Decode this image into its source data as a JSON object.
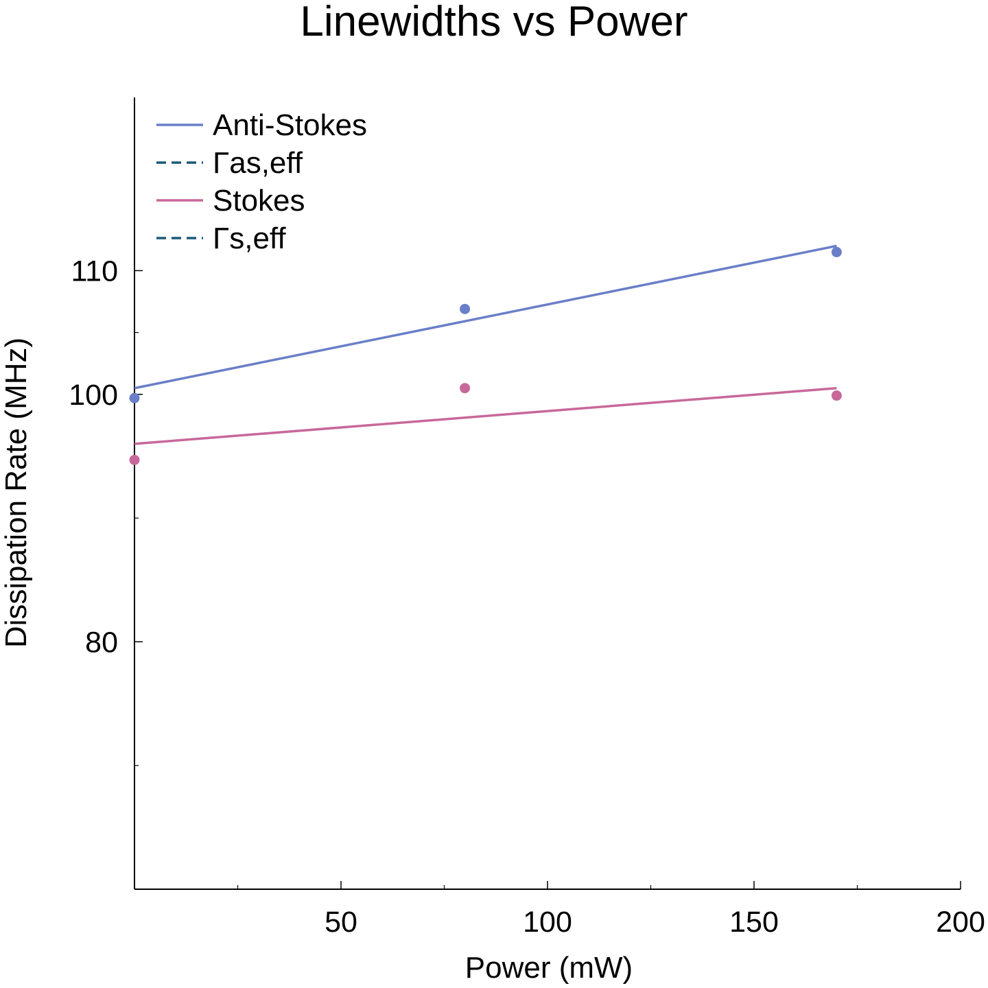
{
  "chart_data": {
    "type": "scatter",
    "title": "Linewidths vs Power",
    "xlabel": "Power (mW)",
    "ylabel": "Dissipation Rate (MHz)",
    "xlim": [
      0,
      200
    ],
    "ylim": [
      60,
      124
    ],
    "xticks": [
      50,
      100,
      150,
      200
    ],
    "yticks": [
      80,
      100,
      110
    ],
    "xticks_minor": [
      25,
      75,
      125,
      175
    ],
    "yticks_minor": [
      70,
      90,
      105
    ],
    "grid": false,
    "legend_position": "top-left",
    "series": [
      {
        "name": "Anti-Stokes",
        "color": "#6a7fc8",
        "style": "solid",
        "points": {
          "x": [
            0,
            80,
            170
          ],
          "y": [
            99.7,
            106.9,
            111.5
          ]
        },
        "fit": {
          "x": [
            0,
            170
          ],
          "y": [
            100.5,
            112.0
          ]
        }
      },
      {
        "name": "Γas,eff",
        "color": "#1a5a78",
        "style": "dashed"
      },
      {
        "name": "Stokes",
        "color": "#c8689a",
        "style": "solid",
        "points": {
          "x": [
            0,
            80,
            170
          ],
          "y": [
            94.7,
            100.5,
            99.9
          ]
        },
        "fit": {
          "x": [
            0,
            170
          ],
          "y": [
            96.0,
            100.5
          ]
        }
      },
      {
        "name": "Γs,eff",
        "color": "#1a5a78",
        "style": "dashed"
      }
    ]
  }
}
